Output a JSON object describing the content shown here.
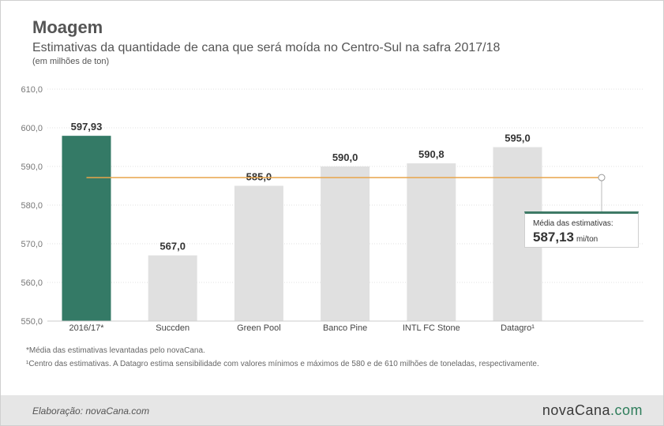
{
  "header": {
    "title": "Moagem",
    "subtitle": "Estimativas da quantidade de cana que será moída no Centro-Sul na safra 2017/18",
    "unit": "(em milhões de ton)"
  },
  "chart_data": {
    "type": "bar",
    "categories": [
      "2016/17*",
      "Succden",
      "Green Pool",
      "Banco Pine",
      "INTL FC Stone",
      "Datagro¹"
    ],
    "values": [
      597.93,
      567.0,
      585.0,
      590.0,
      590.8,
      595.0
    ],
    "value_labels": [
      "597,93",
      "567,0",
      "585,0",
      "590,0",
      "590,8",
      "595,0"
    ],
    "yticks": [
      "550,0",
      "560,0",
      "570,0",
      "580,0",
      "590,0",
      "600,0",
      "610,0"
    ],
    "ylim": [
      550,
      610
    ],
    "grid": true,
    "colors": {
      "highlight": "#347a66",
      "bars": "#e0e0e0",
      "average_line": "#e8a54a"
    },
    "average": {
      "value": 587.13,
      "label": "Média das estimativas:",
      "display": "587,13",
      "unit": "mi/ton"
    }
  },
  "notes": [
    "*Média das estimativas levantadas pelo novaCana.",
    "¹Centro das estimativas. A Datagro estima sensibilidade com valores mínimos e máximos de 580 e de 610 milhões de toneladas, respectivamente."
  ],
  "footer": {
    "credit": "Elaboração: novaCana.com",
    "brand_main": "novaCana",
    "brand_suffix": ".com"
  }
}
